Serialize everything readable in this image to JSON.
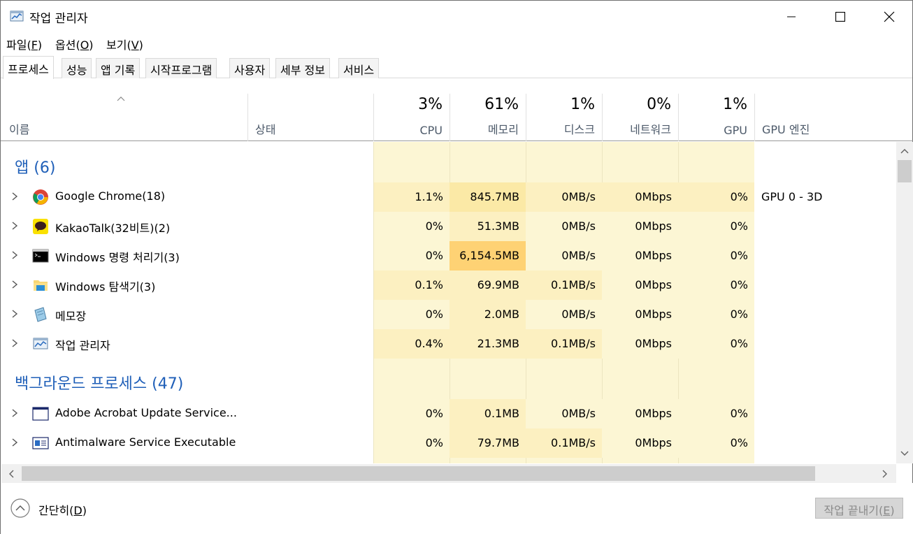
{
  "window": {
    "title": "작업 관리자"
  },
  "menu": [
    {
      "label": "파일(",
      "acc": "F",
      "end": ")"
    },
    {
      "label": "옵션(",
      "acc": "O",
      "end": ")"
    },
    {
      "label": "보기(",
      "acc": "V",
      "end": ")"
    }
  ],
  "tabs": [
    "프로세스",
    "성능",
    "앱 기록",
    "시작프로그램",
    "사용자",
    "세부 정보",
    "서비스"
  ],
  "header": {
    "name": "이름",
    "status": "상태",
    "cpu": {
      "pct": "3%",
      "label": "CPU"
    },
    "memory": {
      "pct": "61%",
      "label": "메모리"
    },
    "disk": {
      "pct": "1%",
      "label": "디스크"
    },
    "network": {
      "pct": "0%",
      "label": "네트워크"
    },
    "gpu": {
      "pct": "1%",
      "label": "GPU"
    },
    "gpu_engine": "GPU 엔진"
  },
  "groups": {
    "apps": "앱 (6)",
    "background": "백그라운드 프로세스 (47)"
  },
  "apps": [
    {
      "name": "Google Chrome(18)",
      "icon": "chrome-icon",
      "cpu": "1.1%",
      "mem": "845.7MB",
      "disk": "0MB/s",
      "net": "0Mbps",
      "gpu": "0%",
      "engine": "GPU 0 - 3D"
    },
    {
      "name": "KakaoTalk(32비트)(2)",
      "icon": "kakaotalk-icon",
      "cpu": "0%",
      "mem": "51.3MB",
      "disk": "0MB/s",
      "net": "0Mbps",
      "gpu": "0%",
      "engine": ""
    },
    {
      "name": "Windows 명령 처리기(3)",
      "icon": "cmd-icon",
      "cpu": "0%",
      "mem": "6,154.5MB",
      "disk": "0MB/s",
      "net": "0Mbps",
      "gpu": "0%",
      "engine": ""
    },
    {
      "name": "Windows 탐색기(3)",
      "icon": "explorer-icon",
      "cpu": "0.1%",
      "mem": "69.9MB",
      "disk": "0.1MB/s",
      "net": "0Mbps",
      "gpu": "0%",
      "engine": ""
    },
    {
      "name": "메모장",
      "icon": "notepad-icon",
      "cpu": "0%",
      "mem": "2.0MB",
      "disk": "0MB/s",
      "net": "0Mbps",
      "gpu": "0%",
      "engine": ""
    },
    {
      "name": "작업 관리자",
      "icon": "taskmgr-icon",
      "cpu": "0.4%",
      "mem": "21.3MB",
      "disk": "0.1MB/s",
      "net": "0Mbps",
      "gpu": "0%",
      "engine": ""
    }
  ],
  "background": [
    {
      "name": "Adobe Acrobat Update Service...",
      "icon": "window-icon",
      "cpu": "0%",
      "mem": "0.1MB",
      "disk": "0MB/s",
      "net": "0Mbps",
      "gpu": "0%",
      "engine": ""
    },
    {
      "name": "Antimalware Service Executable",
      "icon": "service-icon",
      "cpu": "0%",
      "mem": "79.7MB",
      "disk": "0.1MB/s",
      "net": "0Mbps",
      "gpu": "0%",
      "engine": ""
    }
  ],
  "footer": {
    "collapse_label": "간단히(",
    "collapse_acc": "D",
    "collapse_end": ")",
    "end_task_label": "작업 끝내기(",
    "end_task_acc": "E",
    "end_task_end": ")"
  }
}
